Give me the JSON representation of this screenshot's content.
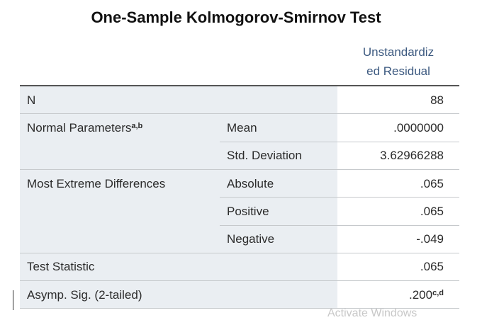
{
  "header": {
    "title": "One-Sample Kolmogorov-Smirnov Test",
    "column": [
      "Unstandardiz",
      "ed Residual"
    ]
  },
  "table": {
    "groups": [
      {
        "label": "N",
        "items": [
          {
            "value": "88"
          }
        ]
      },
      {
        "label": "Normal Parameters",
        "sup": "a,b",
        "items": [
          {
            "sub": "Mean",
            "value": ".0000000"
          },
          {
            "sub": "Std. Deviation",
            "value": "3.62966288"
          }
        ]
      },
      {
        "label": "Most Extreme Differences",
        "items": [
          {
            "sub": "Absolute",
            "value": ".065"
          },
          {
            "sub": "Positive",
            "value": ".065"
          },
          {
            "sub": "Negative",
            "value": "-.049"
          }
        ]
      },
      {
        "label": "Test Statistic",
        "items": [
          {
            "value": ".065"
          }
        ]
      },
      {
        "label": "Asymp. Sig. (2-tailed)",
        "items": [
          {
            "value": ".200",
            "sup": "c,d"
          }
        ]
      }
    ]
  },
  "watermark": "Activate Windows"
}
